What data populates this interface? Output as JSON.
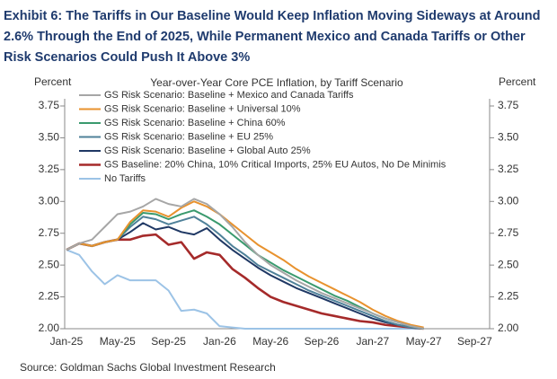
{
  "chart_data": {
    "type": "line",
    "title": [
      "Exhibit 6: The Tariffs in Our Baseline Would Keep Inflation Moving Sideways at Around",
      "2.6% Through the End of 2025, While Permanent Mexico and Canada Tariffs or Other",
      "Risk Scenarios Could Push It Above 3%"
    ],
    "subtitle": "Year-over-Year  Core PCE Inflation,  by Tariff  Scenario",
    "y_label": "Percent",
    "y2_label": "Percent",
    "source": "Source: Goldman Sachs Global Investment Research",
    "categories": [
      "Jan-25",
      null,
      null,
      null,
      "May-25",
      null,
      null,
      null,
      "Sep-25",
      null,
      null,
      null,
      "Jan-26",
      null,
      null,
      null,
      "May-26",
      null,
      null,
      null,
      "Sep-26",
      null,
      null,
      null,
      "Jan-27",
      null,
      null,
      null,
      "May-27",
      null,
      null,
      null,
      "Sep-27",
      null,
      null
    ],
    "ylim": [
      2.0,
      3.75
    ],
    "yticks": [
      {
        "value": 2.0,
        "label": "2.00"
      },
      {
        "value": 2.25,
        "label": "2.25"
      },
      {
        "value": 2.5,
        "label": "2.50"
      },
      {
        "value": 2.75,
        "label": "2.75"
      },
      {
        "value": 3.0,
        "label": "3.00"
      },
      {
        "value": 3.25,
        "label": "3.25"
      },
      {
        "value": 3.5,
        "label": "3.50"
      },
      {
        "value": 3.75,
        "label": "3.75"
      }
    ],
    "y2lim": [
      2.0,
      3.75
    ],
    "y2ticks": [
      {
        "value": 2.0,
        "label": "2.00"
      },
      {
        "value": 2.25,
        "label": "2.25"
      },
      {
        "value": 2.5,
        "label": "2.50"
      },
      {
        "value": 2.75,
        "label": "2.75"
      },
      {
        "value": 3.0,
        "label": "3.00"
      },
      {
        "value": 3.25,
        "label": "3.25"
      },
      {
        "value": 3.5,
        "label": "3.50"
      },
      {
        "value": 3.75,
        "label": "3.75"
      }
    ],
    "legend": "upper left",
    "series": [
      {
        "name": "GS Risk Scenario: Baseline + Mexico and Canada Tariffs",
        "color": "#a6a6a6",
        "values": [
          2.62,
          2.67,
          2.7,
          2.8,
          2.9,
          2.92,
          2.96,
          3.02,
          2.98,
          2.96,
          3.02,
          2.98,
          2.9,
          2.8,
          2.68,
          2.58,
          2.5,
          2.44,
          2.38,
          2.33,
          2.28,
          2.24,
          2.2,
          2.16,
          2.12,
          2.08,
          2.05,
          2.02,
          2.0,
          null,
          null,
          null,
          null,
          null,
          null
        ]
      },
      {
        "name": "GS Risk Scenario: Baseline + Universal 10%",
        "color": "#e8922e",
        "values": [
          2.62,
          2.67,
          2.65,
          2.68,
          2.7,
          2.84,
          2.93,
          2.92,
          2.88,
          2.95,
          3.0,
          2.96,
          2.9,
          2.82,
          2.74,
          2.66,
          2.6,
          2.54,
          2.47,
          2.41,
          2.36,
          2.31,
          2.26,
          2.21,
          2.15,
          2.1,
          2.06,
          2.03,
          2.01,
          null,
          null,
          null,
          null,
          null,
          null
        ]
      },
      {
        "name": "GS Risk Scenario: Baseline + China 60%",
        "color": "#3a9a6e",
        "values": [
          2.62,
          2.67,
          2.65,
          2.68,
          2.7,
          2.82,
          2.91,
          2.9,
          2.86,
          2.9,
          2.93,
          2.88,
          2.82,
          2.74,
          2.66,
          2.58,
          2.52,
          2.46,
          2.41,
          2.36,
          2.31,
          2.26,
          2.22,
          2.17,
          2.12,
          2.08,
          2.05,
          2.02,
          2.0,
          null,
          null,
          null,
          null,
          null,
          null
        ]
      },
      {
        "name": "GS Risk Scenario: Baseline + EU 25%",
        "color": "#4f8199",
        "values": [
          2.62,
          2.67,
          2.65,
          2.68,
          2.7,
          2.8,
          2.88,
          2.86,
          2.82,
          2.85,
          2.88,
          2.82,
          2.74,
          2.65,
          2.58,
          2.5,
          2.45,
          2.4,
          2.35,
          2.3,
          2.26,
          2.22,
          2.18,
          2.14,
          2.1,
          2.06,
          2.03,
          2.01,
          2.0,
          null,
          null,
          null,
          null,
          null,
          null
        ]
      },
      {
        "name": "GS Risk Scenario: Baseline + Global Auto 25%",
        "color": "#1f3864",
        "values": [
          2.62,
          2.67,
          2.65,
          2.68,
          2.7,
          2.76,
          2.83,
          2.78,
          2.8,
          2.76,
          2.74,
          2.79,
          2.7,
          2.62,
          2.55,
          2.48,
          2.42,
          2.37,
          2.32,
          2.28,
          2.24,
          2.2,
          2.16,
          2.12,
          2.08,
          2.05,
          2.03,
          2.01,
          2.0,
          null,
          null,
          null,
          null,
          null,
          null
        ]
      },
      {
        "name": "GS Baseline: 20% China, 10% Critical Imports, 25% EU Autos, No De Minimis",
        "color": "#a52a2a",
        "values": [
          2.62,
          2.67,
          2.65,
          2.68,
          2.7,
          2.7,
          2.73,
          2.74,
          2.66,
          2.68,
          2.55,
          2.6,
          2.58,
          2.47,
          2.4,
          2.32,
          2.25,
          2.21,
          2.18,
          2.15,
          2.12,
          2.1,
          2.08,
          2.06,
          2.05,
          2.03,
          2.02,
          2.01,
          2.0,
          null,
          null,
          null,
          null,
          null,
          null
        ]
      },
      {
        "name": "No Tariffs",
        "color": "#9cc3e6",
        "values": [
          2.62,
          2.58,
          2.45,
          2.35,
          2.42,
          2.38,
          2.38,
          2.38,
          2.3,
          2.14,
          2.15,
          2.12,
          2.02,
          2.01,
          2.0,
          2.0,
          2.0,
          2.0,
          2.0,
          2.0,
          2.0,
          2.0,
          2.0,
          2.0,
          2.0,
          2.0,
          2.0,
          2.0,
          2.0,
          null,
          null,
          null,
          null,
          null,
          null
        ]
      }
    ]
  }
}
